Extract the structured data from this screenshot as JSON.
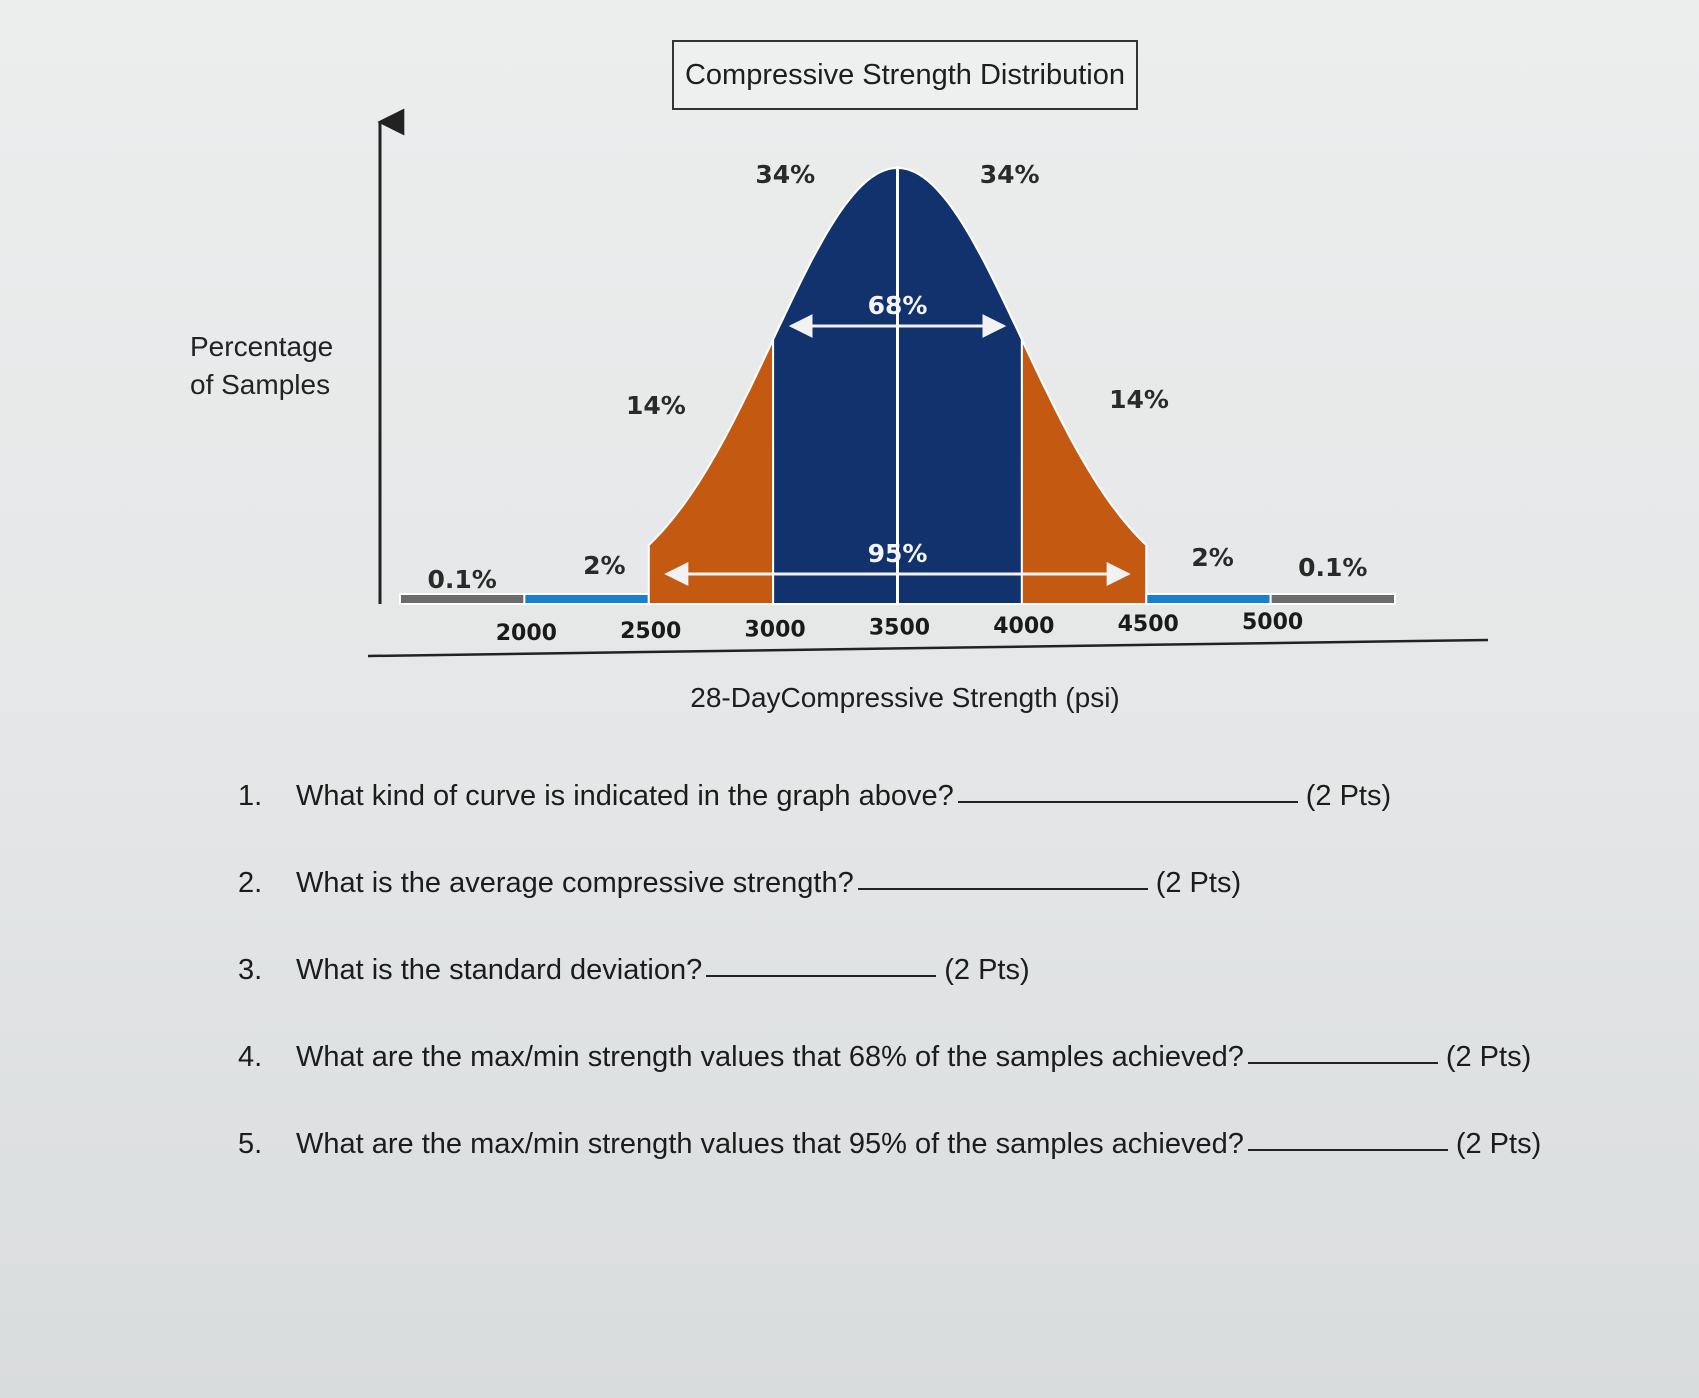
{
  "chart_data": {
    "type": "area",
    "title": "Compressive Strength Distribution",
    "xlabel": "28-DayCompressive Strength (psi)",
    "ylabel": "Percentage of Samples",
    "x_ticks": [
      2000,
      2500,
      3000,
      3500,
      4000,
      4500,
      5000
    ],
    "xlim": [
      1500,
      5500
    ],
    "mean": 3500,
    "std_dev": 500,
    "bands": [
      {
        "from": 1500,
        "to": 2000,
        "label": "0.1%",
        "color": "#6b6b6b"
      },
      {
        "from": 2000,
        "to": 2500,
        "label": "2%",
        "color": "#1a7fd0"
      },
      {
        "from": 2500,
        "to": 3000,
        "label": "14%",
        "color": "#c45a12"
      },
      {
        "from": 3000,
        "to": 3500,
        "label": "34%",
        "color": "#12326e"
      },
      {
        "from": 3500,
        "to": 4000,
        "label": "34%",
        "color": "#12326e"
      },
      {
        "from": 4000,
        "to": 4500,
        "label": "14%",
        "color": "#c45a12"
      },
      {
        "from": 4500,
        "to": 5000,
        "label": "2%",
        "color": "#1a7fd0"
      },
      {
        "from": 5000,
        "to": 5500,
        "label": "0.1%",
        "color": "#6b6b6b"
      }
    ],
    "ranges": [
      {
        "from": 3000,
        "to": 4000,
        "label": "68%"
      },
      {
        "from": 2500,
        "to": 4500,
        "label": "95%"
      }
    ]
  },
  "questions": [
    {
      "num": "1.",
      "text": "What kind of curve is indicated in the graph above?",
      "pts": "(2 Pts)"
    },
    {
      "num": "2.",
      "text": "What is the average compressive strength?",
      "pts": "(2 Pts)"
    },
    {
      "num": "3.",
      "text": "What is the standard deviation?",
      "pts": "(2 Pts)"
    },
    {
      "num": "4.",
      "text": "What are the max/min strength values that 68% of the samples achieved?",
      "pts": "(2 Pts)"
    },
    {
      "num": "5.",
      "text": "What are the max/min strength values that 95% of the samples achieved?",
      "pts": "(2 Pts)"
    }
  ]
}
